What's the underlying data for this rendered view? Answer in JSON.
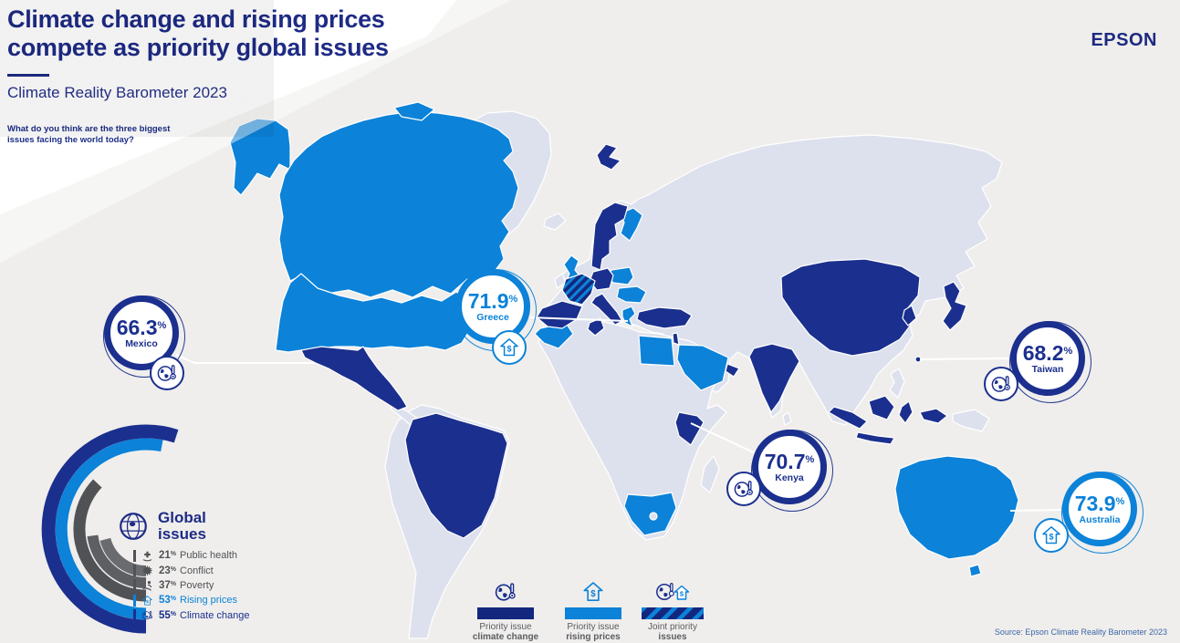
{
  "header": {
    "title_line1": "Climate change and rising prices",
    "title_line2": "compete as priority global issues",
    "subtitle": "Climate Reality Barometer 2023",
    "brand": "EPSON"
  },
  "question": {
    "line1": "What do you think are the three biggest",
    "line2": "issues facing the world today?"
  },
  "units": {
    "percent": "%"
  },
  "global_issues": {
    "title_line1": "Global",
    "title_line2": "issues",
    "items": [
      {
        "pct": "21",
        "label": "Public health",
        "icon": "public-health-icon",
        "color": "#6a6b6f"
      },
      {
        "pct": "23",
        "label": "Conflict",
        "icon": "conflict-icon",
        "color": "#5e5f63"
      },
      {
        "pct": "37",
        "label": "Poverty",
        "icon": "poverty-icon",
        "color": "#515256"
      },
      {
        "pct": "53",
        "label": "Rising prices",
        "icon": "rising-prices-icon",
        "color": "#0c82d8"
      },
      {
        "pct": "55",
        "label": "Climate change",
        "icon": "climate-change-icon",
        "color": "#1b2f8e"
      }
    ]
  },
  "chart_data": {
    "type": "bar",
    "variant": "radial-concentric-arcs",
    "title": "Global issues",
    "categories": [
      "Public health",
      "Conflict",
      "Poverty",
      "Rising prices",
      "Climate change"
    ],
    "values": [
      21,
      23,
      37,
      53,
      55
    ],
    "unit": "%",
    "colors": [
      "#6a6b6f",
      "#5e5f63",
      "#515256",
      "#0c82d8",
      "#1b2f8e"
    ],
    "note": "Concentric arcs opening to the right; innermost = Public health, outermost = Climate change; arc length proportional to value"
  },
  "callouts": [
    {
      "country": "Mexico",
      "value": "66.3",
      "theme": "navy",
      "icon": "climate-change-icon"
    },
    {
      "country": "Greece",
      "value": "71.9",
      "theme": "blue",
      "icon": "rising-prices-icon"
    },
    {
      "country": "Kenya",
      "value": "70.7",
      "theme": "navy",
      "icon": "climate-change-icon"
    },
    {
      "country": "Taiwan",
      "value": "68.2",
      "theme": "navy",
      "icon": "climate-change-icon"
    },
    {
      "country": "Australia",
      "value": "73.9",
      "theme": "blue",
      "icon": "rising-prices-icon"
    }
  ],
  "map_legend": {
    "items": [
      {
        "line1": "Priority issue",
        "line2": "climate change",
        "swatch": "navy",
        "icon": "climate-change-icon"
      },
      {
        "line1": "Priority issue",
        "line2": "rising prices",
        "swatch": "blue",
        "icon": "rising-prices-icon"
      },
      {
        "line1": "Joint priority",
        "line2": "issues",
        "swatch": "striped",
        "icon": "joint-priority-icon"
      }
    ]
  },
  "map": {
    "priority_climate_change": [
      "Mexico",
      "Brazil",
      "Spain",
      "Germany",
      "Italy",
      "Norway",
      "Sweden",
      "Turkey",
      "Tunisia",
      "Israel",
      "UAE",
      "Kenya",
      "India",
      "China",
      "South Korea",
      "Japan",
      "Taiwan",
      "Indonesia"
    ],
    "priority_rising_prices": [
      "Canada",
      "United States",
      "United Kingdom",
      "Finland",
      "Poland",
      "Romania",
      "Greece",
      "Morocco",
      "Egypt",
      "Saudi Arabia",
      "South Africa",
      "Australia"
    ],
    "joint_priority": [
      "France"
    ],
    "no_data_color_regions": [
      "Greenland",
      "Russia",
      "Central Asia",
      "most of Africa",
      "most of South America",
      "Southeast Asia",
      "Philippines",
      "Papua New Guinea"
    ]
  },
  "source": "Source: Epson Climate Reality Barometer 2023",
  "colors": {
    "navy": "#1b2f8e",
    "blue": "#0c82d8",
    "no_data": "#dde1ed",
    "background": "#efeeec",
    "title": "#1e2b85",
    "gray_text": "#55565a"
  }
}
